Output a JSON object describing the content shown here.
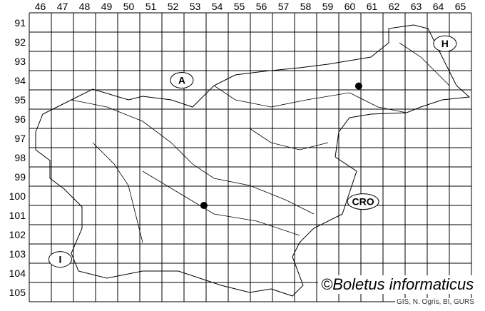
{
  "map": {
    "columns": [
      "46",
      "47",
      "48",
      "49",
      "50",
      "51",
      "52",
      "53",
      "54",
      "55",
      "56",
      "57",
      "58",
      "59",
      "60",
      "61",
      "62",
      "63",
      "64",
      "65"
    ],
    "rows": [
      "91",
      "92",
      "93",
      "94",
      "95",
      "96",
      "97",
      "98",
      "99",
      "100",
      "101",
      "102",
      "103",
      "104",
      "105"
    ],
    "country_labels": [
      {
        "label": "A",
        "col": 52.9,
        "row": 94.5
      },
      {
        "label": "H",
        "col": 64.8,
        "row": 92.6
      },
      {
        "label": "CRO",
        "col": 61.1,
        "row": 100.8
      },
      {
        "label": "I",
        "col": 47.4,
        "row": 103.8
      }
    ],
    "records": [
      {
        "col": 60.9,
        "row": 94.8
      },
      {
        "col": 53.9,
        "row": 101.0
      }
    ],
    "colors": {
      "line": "#000000",
      "background": "#ffffff"
    }
  },
  "credit": "©Boletus informaticus",
  "source": "GIS, N. Ogris, BI, GURS"
}
